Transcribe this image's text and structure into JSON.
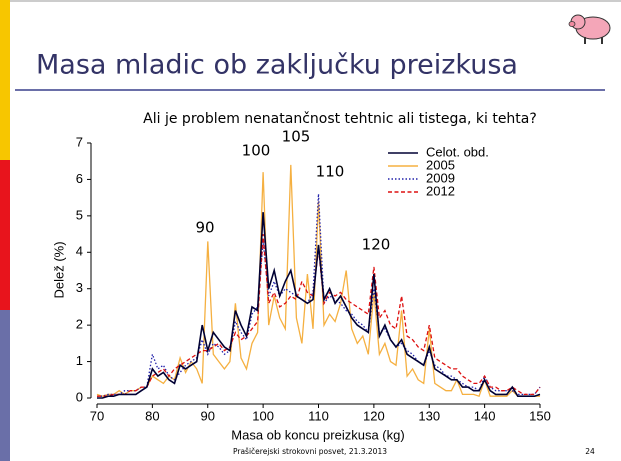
{
  "slide": {
    "title": "Masa mladic ob zaključku preizkusa",
    "footer": "Prašičerejski strokovni posvet, 21.3.2013",
    "page": "24"
  },
  "chart_data": {
    "type": "line",
    "title": "Ali je problem nenatančnost tehtnic ali tistega, ki tehta?",
    "x_label": "Masa ob koncu preizkusa (kg)",
    "y_label": "Delež (%)",
    "annotations": [
      "90",
      "100",
      "105",
      "110",
      "120"
    ],
    "xlim": [
      70,
      150
    ],
    "xticks": [
      70,
      80,
      90,
      100,
      110,
      120,
      130,
      140,
      150
    ],
    "ylim": [
      0,
      7
    ],
    "yticks": [
      0,
      1,
      2,
      3,
      4,
      5,
      6,
      7
    ],
    "legend": "upper right",
    "x": [
      70,
      71,
      72,
      73,
      74,
      75,
      76,
      77,
      78,
      79,
      80,
      81,
      82,
      83,
      84,
      85,
      86,
      87,
      88,
      89,
      90,
      91,
      92,
      93,
      94,
      95,
      96,
      97,
      98,
      99,
      100,
      101,
      102,
      103,
      104,
      105,
      106,
      107,
      108,
      109,
      110,
      111,
      112,
      113,
      114,
      115,
      116,
      117,
      118,
      119,
      120,
      121,
      122,
      123,
      124,
      125,
      126,
      127,
      128,
      129,
      130,
      131,
      132,
      133,
      134,
      135,
      136,
      137,
      138,
      139,
      140,
      141,
      142,
      143,
      144,
      145,
      146,
      147,
      148,
      149,
      150
    ],
    "series": [
      {
        "name": "Celot. obd.",
        "color": "#000033",
        "style": "solid",
        "values": [
          0,
          0,
          0.05,
          0.05,
          0.1,
          0.1,
          0.1,
          0.1,
          0.2,
          0.3,
          0.8,
          0.6,
          0.7,
          0.5,
          0.4,
          0.9,
          0.8,
          0.9,
          1.0,
          2.0,
          1.3,
          1.8,
          1.6,
          1.4,
          1.3,
          2.4,
          2.0,
          1.7,
          2.5,
          2.4,
          5.1,
          3.0,
          3.5,
          2.8,
          3.2,
          3.5,
          2.8,
          2.7,
          2.6,
          2.7,
          4.2,
          2.7,
          3.0,
          2.6,
          2.8,
          2.5,
          2.2,
          2.0,
          1.9,
          1.8,
          3.4,
          1.7,
          2.0,
          1.6,
          1.4,
          1.6,
          1.2,
          1.1,
          1.0,
          0.9,
          1.4,
          0.8,
          0.7,
          0.6,
          0.5,
          0.5,
          0.3,
          0.3,
          0.2,
          0.2,
          0.5,
          0.2,
          0.1,
          0.1,
          0.1,
          0.3,
          0.05,
          0.05,
          0.05,
          0.05,
          0.1
        ]
      },
      {
        "name": "2005",
        "color": "#f5b041",
        "style": "solid",
        "values": [
          0.1,
          0.05,
          0.1,
          0.1,
          0.2,
          0.1,
          0.2,
          0.2,
          0.3,
          0.3,
          0.6,
          0.5,
          0.4,
          0.6,
          0.5,
          1.1,
          0.7,
          1.0,
          0.8,
          0.4,
          4.3,
          1.2,
          1.0,
          0.8,
          1.0,
          2.6,
          1.1,
          0.8,
          1.5,
          1.8,
          6.2,
          2.0,
          2.8,
          2.2,
          1.9,
          6.4,
          2.2,
          1.5,
          3.4,
          1.9,
          5.4,
          2.0,
          2.3,
          2.1,
          2.6,
          3.5,
          1.9,
          1.5,
          1.7,
          1.2,
          2.9,
          1.2,
          1.5,
          1.0,
          0.9,
          2.4,
          0.6,
          0.8,
          0.5,
          0.4,
          1.9,
          0.4,
          0.3,
          0.2,
          0.2,
          0.5,
          0.1,
          0.1,
          0.1,
          0.05,
          0.5,
          0.05,
          0.05,
          0.05,
          0.05,
          0.2,
          0.05,
          0.05,
          0.05,
          0.05,
          0.05
        ]
      },
      {
        "name": "2009",
        "color": "#2222aa",
        "style": "dotted",
        "values": [
          0.05,
          0.05,
          0.1,
          0.1,
          0.1,
          0.2,
          0.2,
          0.2,
          0.3,
          0.3,
          1.2,
          0.8,
          0.9,
          0.6,
          0.5,
          0.7,
          0.9,
          1.0,
          1.1,
          1.6,
          1.2,
          1.5,
          1.4,
          1.2,
          1.3,
          2.1,
          1.8,
          1.6,
          2.3,
          2.5,
          4.3,
          2.8,
          3.2,
          2.8,
          3.0,
          2.9,
          2.8,
          2.7,
          2.6,
          2.9,
          5.6,
          2.6,
          2.8,
          2.7,
          2.6,
          2.4,
          2.3,
          2.1,
          2.0,
          1.8,
          3.0,
          1.8,
          1.9,
          1.6,
          1.4,
          1.5,
          1.3,
          1.2,
          1.0,
          0.9,
          1.3,
          0.9,
          0.8,
          0.6,
          0.6,
          0.5,
          0.4,
          0.3,
          0.3,
          0.2,
          0.6,
          0.3,
          0.2,
          0.2,
          0.2,
          0.2,
          0.1,
          0.1,
          0.1,
          0.1,
          0.3
        ]
      },
      {
        "name": "2012",
        "color": "#dd1111",
        "style": "dashed",
        "values": [
          0.05,
          0.05,
          0.05,
          0.1,
          0.1,
          0.1,
          0.2,
          0.2,
          0.3,
          0.3,
          0.6,
          0.7,
          0.8,
          0.6,
          0.8,
          0.9,
          1.0,
          1.1,
          1.2,
          1.3,
          1.3,
          1.4,
          1.5,
          1.3,
          1.4,
          1.8,
          1.6,
          1.7,
          1.9,
          2.1,
          4.5,
          2.6,
          2.9,
          2.5,
          2.6,
          2.8,
          2.7,
          3.2,
          2.9,
          2.8,
          4.1,
          2.6,
          2.9,
          2.8,
          2.9,
          2.7,
          2.6,
          2.5,
          2.4,
          2.3,
          3.6,
          2.2,
          2.4,
          2.0,
          1.9,
          2.8,
          1.7,
          1.6,
          1.4,
          1.3,
          2.0,
          1.1,
          1.0,
          0.9,
          0.8,
          0.8,
          0.6,
          0.5,
          0.4,
          0.4,
          0.6,
          0.3,
          0.3,
          0.2,
          0.2,
          0.3,
          0.2,
          0.1,
          0.1,
          0.1,
          0.3
        ]
      }
    ]
  }
}
